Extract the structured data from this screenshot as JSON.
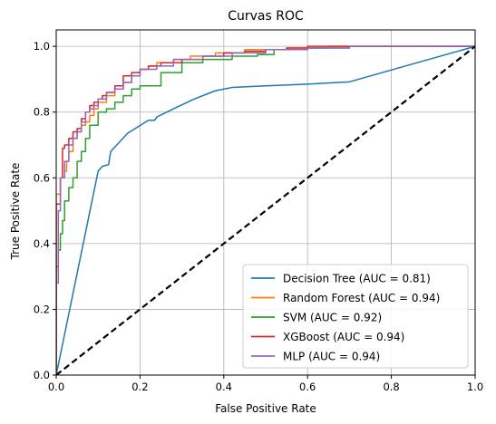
{
  "chart_data": {
    "type": "line",
    "title": "Curvas ROC",
    "xlabel": "False Positive Rate",
    "ylabel": "True Positive Rate",
    "xlim": [
      0,
      1
    ],
    "ylim": [
      0,
      1.05
    ],
    "xticks": [
      0,
      0.2,
      0.4,
      0.6,
      0.8,
      1
    ],
    "xtick_labels": [
      "0.0",
      "0.2",
      "0.4",
      "0.6",
      "0.8",
      "1.0"
    ],
    "yticks": [
      0,
      0.2,
      0.4,
      0.6,
      0.8,
      1
    ],
    "ytick_labels": [
      "0.0",
      "0.2",
      "0.4",
      "0.6",
      "0.8",
      "1.0"
    ],
    "grid": true,
    "legend_position": "lower-right",
    "series": [
      {
        "name": "Decision Tree (AUC = 0.81)",
        "color": "#1f77b4",
        "step": false,
        "x": [
          0,
          0.1,
          0.11,
          0.125,
          0.13,
          0.17,
          0.22,
          0.235,
          0.24,
          0.28,
          0.33,
          0.36,
          0.38,
          0.42,
          0.5,
          0.6,
          0.7,
          1.0
        ],
        "y": [
          0,
          0.62,
          0.635,
          0.64,
          0.68,
          0.735,
          0.775,
          0.775,
          0.785,
          0.81,
          0.84,
          0.855,
          0.865,
          0.875,
          0.88,
          0.885,
          0.892,
          1.0
        ]
      },
      {
        "name": "Random Forest (AUC = 0.94)",
        "color": "#ff7f0e",
        "step": true,
        "x": [
          0,
          0,
          0.01,
          0.02,
          0.025,
          0.03,
          0.04,
          0.05,
          0.06,
          0.07,
          0.08,
          0.09,
          0.1,
          0.12,
          0.14,
          0.16,
          0.18,
          0.2,
          0.22,
          0.24,
          0.28,
          0.32,
          0.38,
          0.45,
          0.55,
          0.65,
          0.8,
          1.0
        ],
        "y": [
          0,
          0.5,
          0.55,
          0.6,
          0.62,
          0.65,
          0.68,
          0.72,
          0.74,
          0.76,
          0.77,
          0.79,
          0.81,
          0.83,
          0.85,
          0.87,
          0.89,
          0.91,
          0.93,
          0.94,
          0.95,
          0.96,
          0.97,
          0.98,
          0.99,
          0.995,
          1.0,
          1.0
        ]
      },
      {
        "name": "SVM (AUC = 0.92)",
        "color": "#2ca02c",
        "step": true,
        "x": [
          0,
          0.005,
          0.01,
          0.015,
          0.02,
          0.03,
          0.04,
          0.05,
          0.06,
          0.07,
          0.08,
          0.1,
          0.12,
          0.14,
          0.16,
          0.18,
          0.2,
          0.25,
          0.3,
          0.35,
          0.42,
          0.48,
          0.52,
          0.6,
          0.7,
          0.85,
          1.0
        ],
        "y": [
          0,
          0.33,
          0.38,
          0.43,
          0.47,
          0.53,
          0.57,
          0.6,
          0.65,
          0.68,
          0.72,
          0.76,
          0.8,
          0.81,
          0.83,
          0.85,
          0.87,
          0.88,
          0.92,
          0.95,
          0.96,
          0.97,
          0.975,
          0.99,
          0.995,
          1.0,
          1.0
        ]
      },
      {
        "name": "XGBoost (AUC = 0.94)",
        "color": "#d62728",
        "step": true,
        "x": [
          0,
          0,
          0.01,
          0.015,
          0.02,
          0.03,
          0.04,
          0.05,
          0.06,
          0.07,
          0.08,
          0.09,
          0.1,
          0.11,
          0.12,
          0.14,
          0.16,
          0.18,
          0.2,
          0.22,
          0.25,
          0.3,
          0.35,
          0.4,
          0.45,
          0.5,
          0.55,
          0.6,
          0.7,
          0.85,
          1.0
        ],
        "y": [
          0,
          0.5,
          0.52,
          0.6,
          0.69,
          0.7,
          0.72,
          0.74,
          0.75,
          0.78,
          0.8,
          0.82,
          0.83,
          0.84,
          0.85,
          0.86,
          0.88,
          0.91,
          0.92,
          0.93,
          0.94,
          0.95,
          0.96,
          0.97,
          0.98,
          0.985,
          0.99,
          0.995,
          1.0,
          1.0,
          1.0
        ]
      },
      {
        "name": "MLP (AUC = 0.94)",
        "color": "#9467bd",
        "step": true,
        "x": [
          0,
          0,
          0.005,
          0.01,
          0.02,
          0.03,
          0.04,
          0.05,
          0.06,
          0.07,
          0.08,
          0.09,
          0.1,
          0.12,
          0.14,
          0.16,
          0.18,
          0.2,
          0.24,
          0.28,
          0.35,
          0.42,
          0.5,
          0.6,
          0.7,
          0.85,
          1.0
        ],
        "y": [
          0,
          0.19,
          0.28,
          0.5,
          0.6,
          0.65,
          0.7,
          0.72,
          0.74,
          0.77,
          0.8,
          0.81,
          0.82,
          0.84,
          0.86,
          0.87,
          0.89,
          0.91,
          0.93,
          0.94,
          0.96,
          0.97,
          0.98,
          0.99,
          0.995,
          1.0,
          1.0
        ]
      }
    ],
    "reference_line": {
      "x": [
        0,
        1
      ],
      "y": [
        0,
        1
      ],
      "color": "#000000",
      "style": "dashed"
    }
  }
}
